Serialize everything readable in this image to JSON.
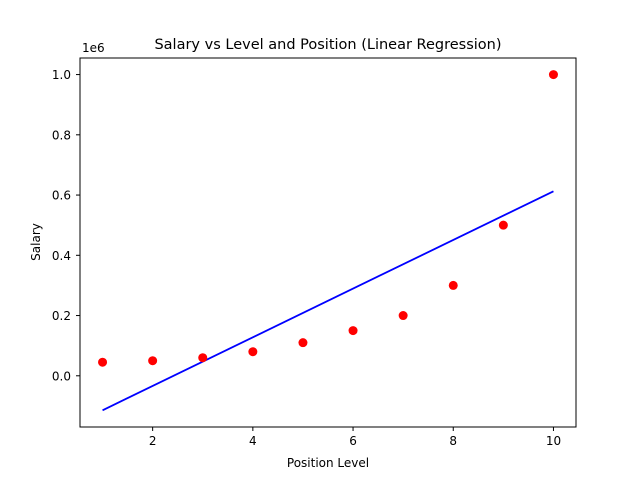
{
  "chart_data": {
    "type": "scatter",
    "title": "Salary vs Level and Position (Linear Regression)",
    "xlabel": "Position Level",
    "ylabel": "Salary",
    "y_offset_label": "1e6",
    "xlim": [
      0.55,
      10.45
    ],
    "ylim": [
      -170000,
      1055000
    ],
    "grid": false,
    "x_ticks": [
      2,
      4,
      6,
      8,
      10
    ],
    "x_tick_labels": [
      "2",
      "4",
      "6",
      "8",
      "10"
    ],
    "y_ticks": [
      0,
      200000,
      400000,
      600000,
      800000,
      1000000
    ],
    "y_tick_labels": [
      "0.0",
      "0.2",
      "0.4",
      "0.6",
      "0.8",
      "1.0"
    ],
    "series": [
      {
        "kind": "scatter",
        "color": "#ff0000",
        "x": [
          1,
          2,
          3,
          4,
          5,
          6,
          7,
          8,
          9,
          10
        ],
        "y": [
          45000,
          50000,
          60000,
          80000,
          110000,
          150000,
          200000,
          300000,
          500000,
          1000000
        ]
      },
      {
        "kind": "line",
        "color": "#0000ff",
        "x": [
          1,
          10
        ],
        "y": [
          -114454.5,
          612500
        ]
      }
    ]
  }
}
